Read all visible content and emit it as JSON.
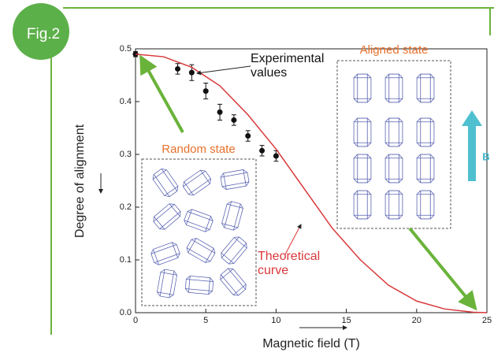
{
  "chart_data": {
    "type": "scatter",
    "badge": "Fig.2",
    "xlabel": "Magnetic field (T)",
    "ylabel": "Degree of alignment",
    "xlim": [
      0,
      25
    ],
    "ylim": [
      0,
      0.5
    ],
    "xticks": [
      0,
      5,
      10,
      15,
      20,
      25
    ],
    "yticks": [
      {
        "value": 0,
        "label": "0.0"
      },
      0.1,
      0.2,
      0.3,
      0.4,
      0.5
    ],
    "series": [
      {
        "name": "Experimental values",
        "color": "#111111",
        "marker": "point",
        "x": [
          0,
          3,
          4,
          5,
          6,
          7,
          8,
          9,
          10
        ],
        "values": [
          0.49,
          0.462,
          0.455,
          0.42,
          0.38,
          0.365,
          0.335,
          0.307,
          0.297
        ],
        "errors": [
          0.005,
          0.01,
          0.015,
          0.015,
          0.015,
          0.01,
          0.01,
          0.01,
          0.01
        ]
      },
      {
        "name": "Theoretical curve",
        "color": "#d9383a",
        "marker": "line",
        "x": [
          0,
          2,
          4,
          6,
          8,
          10,
          12,
          14,
          16,
          18,
          20,
          22,
          24,
          25
        ],
        "values": [
          0.49,
          0.485,
          0.465,
          0.43,
          0.375,
          0.31,
          0.235,
          0.16,
          0.1,
          0.052,
          0.022,
          0.007,
          0.001,
          0
        ]
      }
    ],
    "annotations": [
      "Random state",
      "Aligned state",
      "B"
    ]
  }
}
